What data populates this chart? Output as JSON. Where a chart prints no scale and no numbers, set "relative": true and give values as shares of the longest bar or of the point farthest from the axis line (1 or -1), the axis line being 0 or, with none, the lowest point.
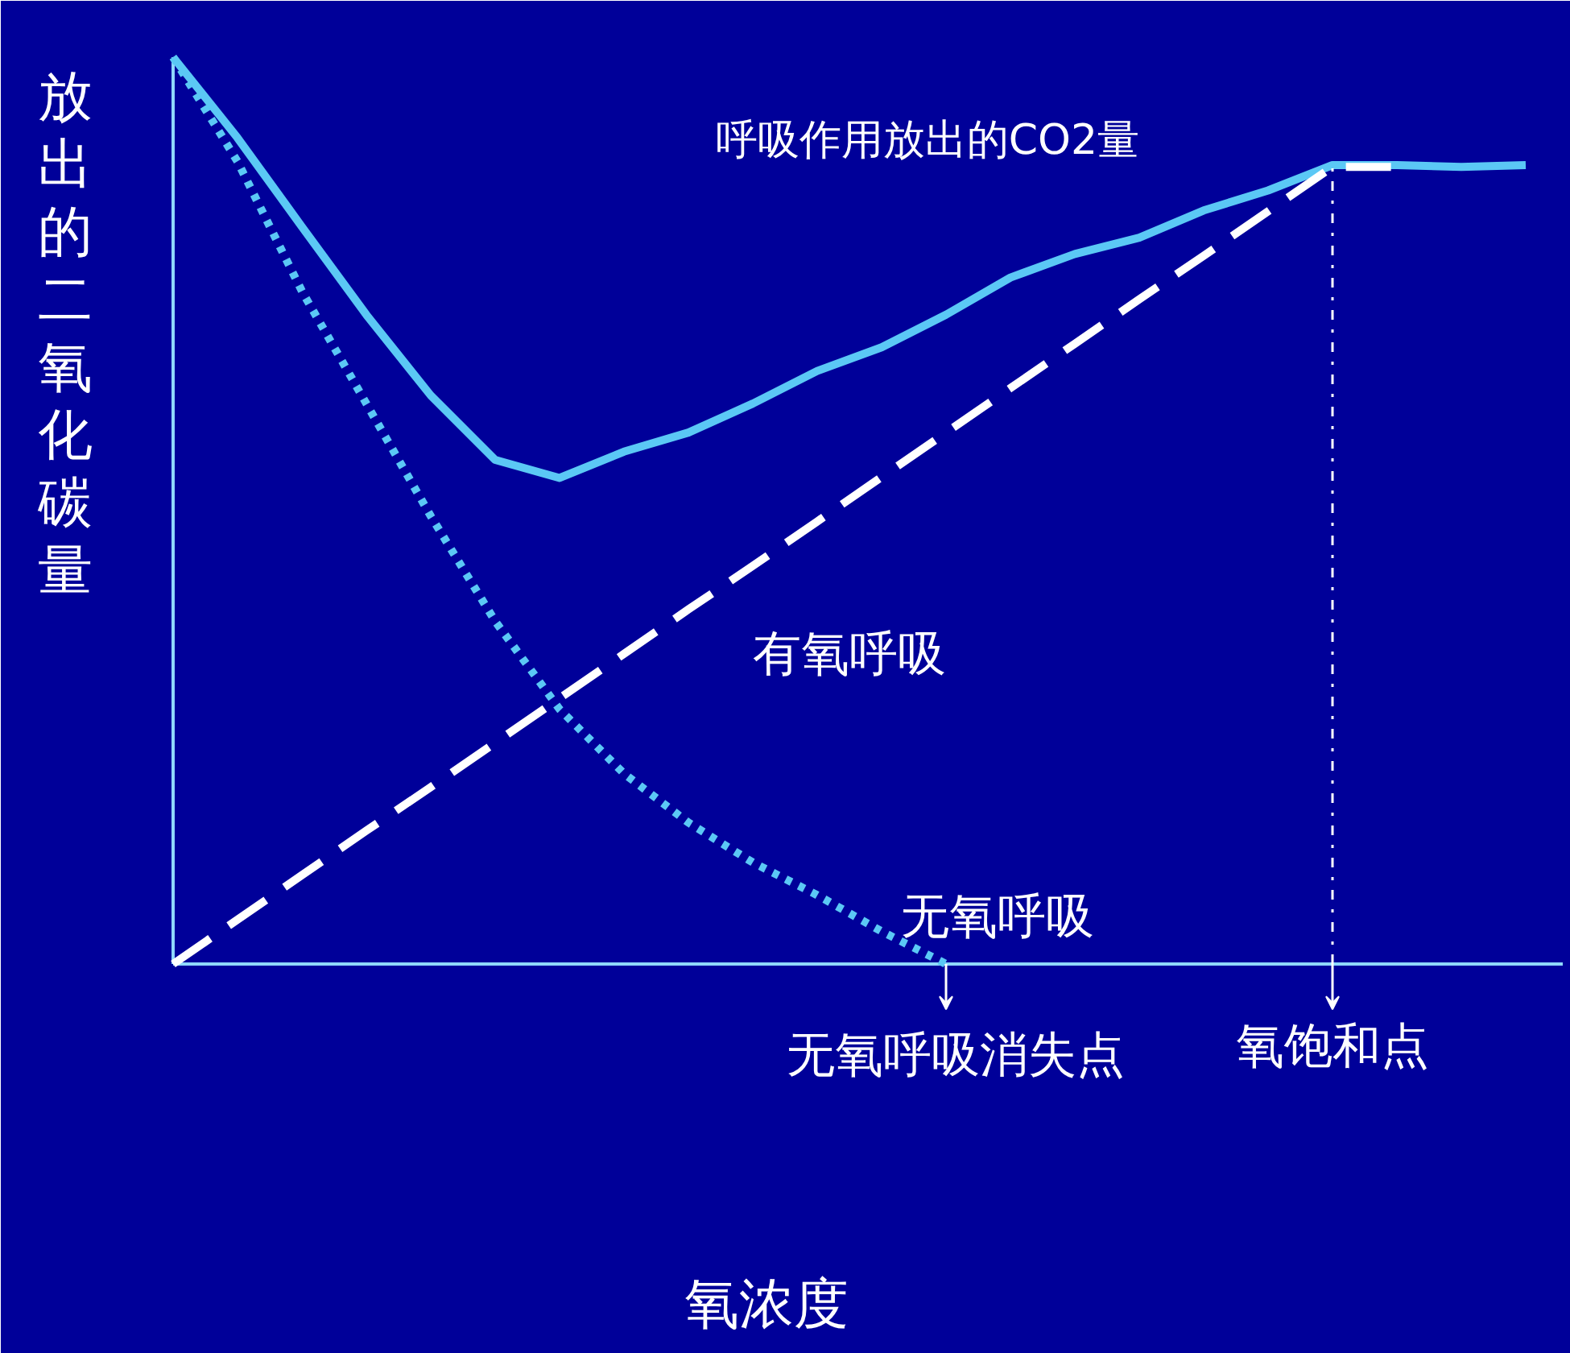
{
  "chart_data": {
    "type": "line",
    "relative": true,
    "ylabel": "放出的二氧化碳量",
    "categories": [
      null,
      null,
      null,
      null,
      null,
      null,
      null,
      null,
      null,
      null,
      null,
      null,
      null,
      null,
      null,
      null,
      null,
      null,
      null,
      null,
      null,
      null
    ],
    "series": [
      {
        "name": "呼吸作用放出的CO2量",
        "color": "#5bc8f5",
        "line_style": "solid",
        "values": [
          1,
          0.911,
          0.813,
          0.716,
          0.627,
          0.556,
          0.536,
          0.565,
          0.586,
          0.618,
          0.654,
          0.68,
          0.716,
          0.757,
          0.783,
          0.801,
          0.831,
          0.853,
          0.881,
          0.881,
          0.879,
          0.881
        ]
      },
      {
        "name": "有氧呼吸",
        "color": "#ffffff",
        "line_style": "dashed",
        "values": [
          0,
          0.049,
          0.098,
          0.147,
          0.195,
          0.244,
          0.293,
          0.342,
          0.391,
          0.439,
          0.488,
          0.537,
          0.586,
          0.635,
          0.684,
          0.733,
          0.781,
          0.83,
          0.879,
          0.879,
          null,
          null
        ]
      },
      {
        "name": "无氧呼吸",
        "color": "#5bc8f5",
        "line_style": "dotted",
        "values": [
          1,
          0.885,
          0.742,
          0.618,
          0.494,
          0.378,
          0.281,
          0.21,
          0.156,
          0.112,
          0.076,
          0.036,
          0,
          null,
          null,
          null,
          null,
          null,
          null,
          null,
          null,
          null
        ]
      }
    ],
    "annotations": [
      "无氧呼吸消失点",
      "氧饱和点",
      "氧浓度"
    ],
    "legend": false,
    "grid": false
  }
}
